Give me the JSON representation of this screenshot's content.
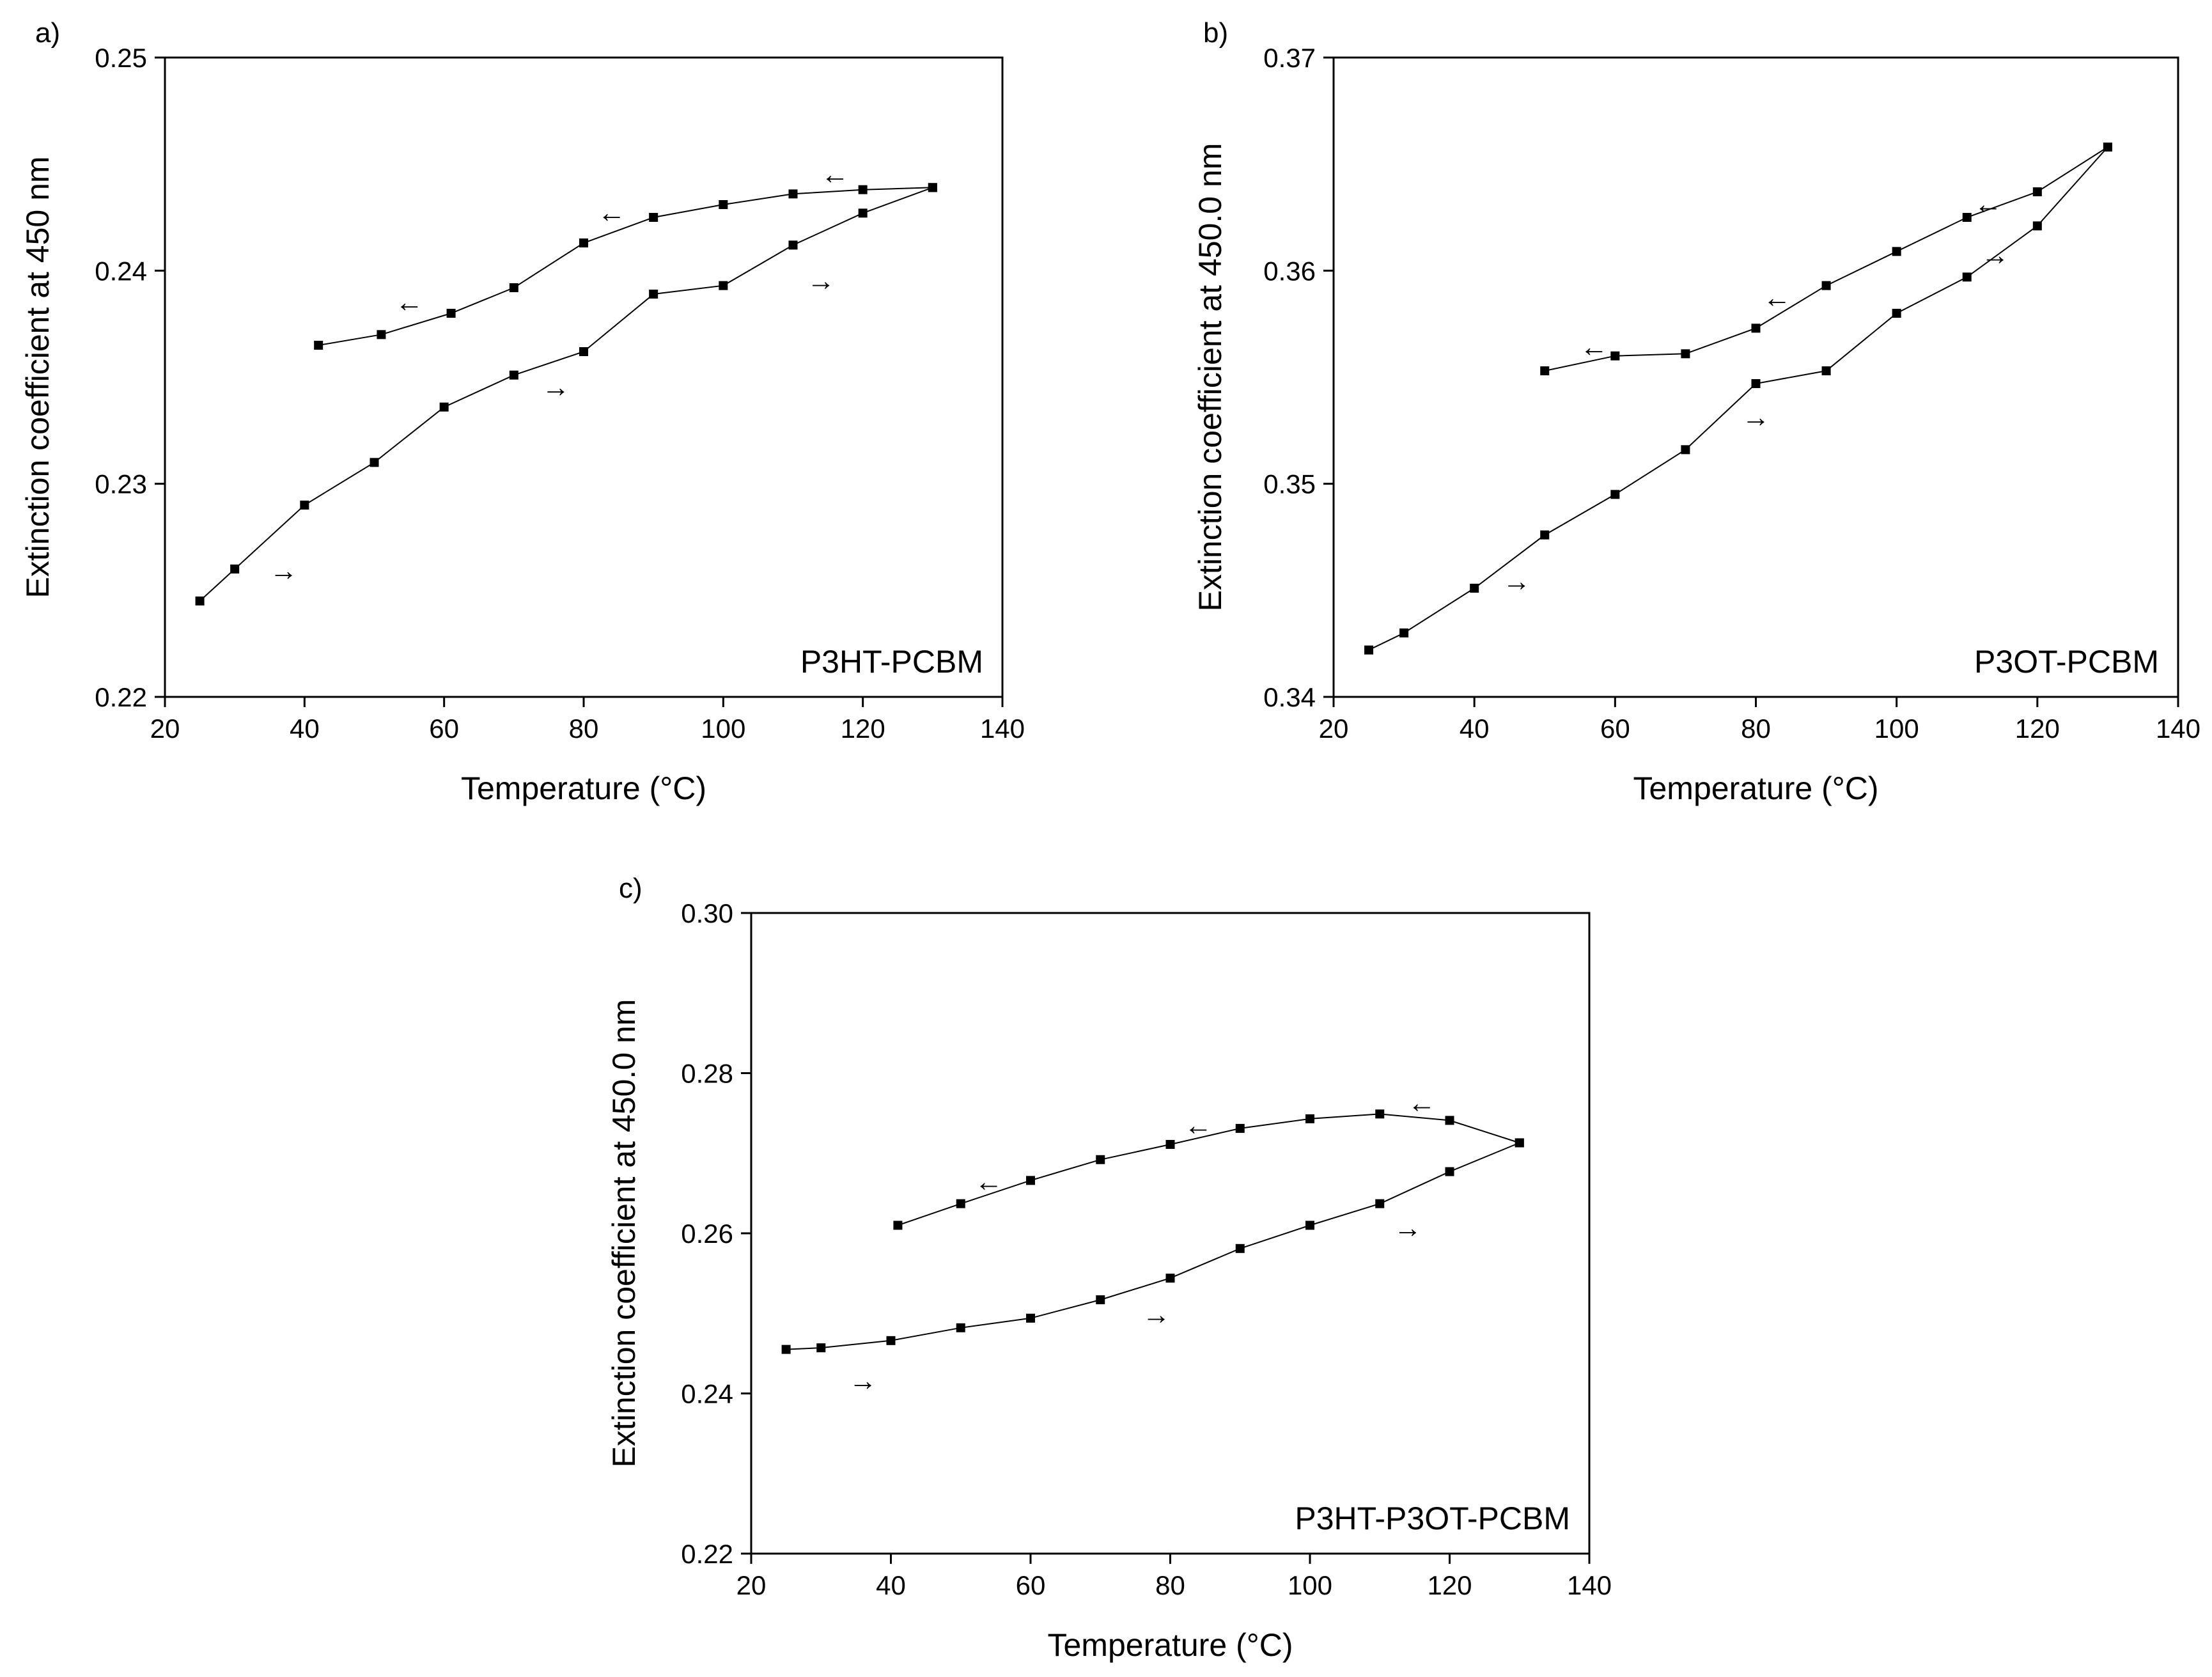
{
  "chart_data": [
    {
      "type": "line",
      "panel_label": "a)",
      "annotation": "P3HT-PCBM",
      "xlabel": "Temperature (°C)",
      "ylabel": "Extinction coefficient at 450 nm",
      "xlim": [
        20,
        140
      ],
      "ylim": [
        0.22,
        0.25
      ],
      "xticks": [
        20,
        40,
        60,
        80,
        100,
        120,
        140
      ],
      "xtick_labels": [
        "20",
        "40",
        "60",
        "80",
        "100",
        "120",
        "140"
      ],
      "yticks": [
        0.22,
        0.23,
        0.24,
        0.25
      ],
      "ytick_labels": [
        "0.22",
        "0.23",
        "0.24",
        "0.25"
      ],
      "grid": false,
      "series": [
        {
          "name": "heating",
          "direction": "→",
          "x": [
            25,
            30,
            40,
            50,
            60,
            70,
            80,
            90,
            100,
            110,
            120,
            130
          ],
          "y": [
            0.2245,
            0.226,
            0.229,
            0.231,
            0.2336,
            0.2351,
            0.2362,
            0.2389,
            0.2393,
            0.2412,
            0.2427,
            0.2439
          ]
        },
        {
          "name": "cooling",
          "direction": "←",
          "x": [
            130,
            120,
            110,
            100,
            90,
            80,
            70,
            61,
            51,
            42
          ],
          "y": [
            0.2439,
            0.2438,
            0.2436,
            0.2431,
            0.2425,
            0.2413,
            0.2392,
            0.238,
            0.237,
            0.2365
          ]
        }
      ],
      "arrows": [
        {
          "glyph": "←",
          "x": 116,
          "y": 0.2445
        },
        {
          "glyph": "←",
          "x": 84,
          "y": 0.2427
        },
        {
          "glyph": "←",
          "x": 55,
          "y": 0.2385
        },
        {
          "glyph": "→",
          "x": 114,
          "y": 0.2395
        },
        {
          "glyph": "→",
          "x": 76,
          "y": 0.2345
        },
        {
          "glyph": "→",
          "x": 37,
          "y": 0.2259
        }
      ]
    },
    {
      "type": "line",
      "panel_label": "b)",
      "annotation": "P3OT-PCBM",
      "xlabel": "Temperature (°C)",
      "ylabel": "Extinction coefficient at 450.0 nm",
      "xlim": [
        20,
        140
      ],
      "ylim": [
        0.34,
        0.37
      ],
      "xticks": [
        20,
        40,
        60,
        80,
        100,
        120,
        140
      ],
      "xtick_labels": [
        "20",
        "40",
        "60",
        "80",
        "100",
        "120",
        "140"
      ],
      "yticks": [
        0.34,
        0.35,
        0.36,
        0.37
      ],
      "ytick_labels": [
        "0.34",
        "0.35",
        "0.36",
        "0.37"
      ],
      "grid": false,
      "series": [
        {
          "name": "heating",
          "direction": "→",
          "x": [
            25,
            30,
            40,
            50,
            60,
            70,
            80,
            90,
            100,
            110,
            120,
            130
          ],
          "y": [
            0.3422,
            0.343,
            0.3451,
            0.3476,
            0.3495,
            0.3516,
            0.3547,
            0.3553,
            0.358,
            0.3597,
            0.3621,
            0.3658
          ]
        },
        {
          "name": "cooling",
          "direction": "←",
          "x": [
            130,
            120,
            110,
            100,
            90,
            80,
            70,
            60,
            50
          ],
          "y": [
            0.3658,
            0.3637,
            0.3625,
            0.3609,
            0.3593,
            0.3573,
            0.3561,
            0.356,
            0.3553
          ]
        }
      ],
      "arrows": [
        {
          "glyph": "←",
          "x": 113,
          "y": 0.3631
        },
        {
          "glyph": "←",
          "x": 83,
          "y": 0.3587
        },
        {
          "glyph": "←",
          "x": 57,
          "y": 0.3564
        },
        {
          "glyph": "→",
          "x": 114,
          "y": 0.3607
        },
        {
          "glyph": "→",
          "x": 80,
          "y": 0.3531
        },
        {
          "glyph": "→",
          "x": 46,
          "y": 0.3454
        }
      ]
    },
    {
      "type": "line",
      "panel_label": "c)",
      "annotation": "P3HT-P3OT-PCBM",
      "xlabel": "Temperature (°C)",
      "ylabel": "Extinction coefficient at 450.0 nm",
      "xlim": [
        20,
        140
      ],
      "ylim": [
        0.22,
        0.3
      ],
      "xticks": [
        20,
        40,
        60,
        80,
        100,
        120,
        140
      ],
      "xtick_labels": [
        "20",
        "40",
        "60",
        "80",
        "100",
        "120",
        "140"
      ],
      "yticks": [
        0.22,
        0.24,
        0.26,
        0.28,
        0.3
      ],
      "ytick_labels": [
        "0.22",
        "0.24",
        "0.26",
        "0.28",
        "0.30"
      ],
      "grid": false,
      "series": [
        {
          "name": "heating",
          "direction": "→",
          "x": [
            25,
            30,
            40,
            50,
            60,
            70,
            80,
            90,
            100,
            110,
            120,
            130
          ],
          "y": [
            0.2455,
            0.2457,
            0.2466,
            0.2482,
            0.2494,
            0.2517,
            0.2544,
            0.2581,
            0.261,
            0.2637,
            0.2677,
            0.2713
          ]
        },
        {
          "name": "cooling",
          "direction": "←",
          "x": [
            130,
            120,
            110,
            100,
            90,
            80,
            70,
            60,
            50,
            41
          ],
          "y": [
            0.2713,
            0.2741,
            0.2749,
            0.2743,
            0.2731,
            0.2711,
            0.2692,
            0.2666,
            0.2637,
            0.261
          ]
        }
      ],
      "arrows": [
        {
          "glyph": "←",
          "x": 116,
          "y": 0.2762
        },
        {
          "glyph": "←",
          "x": 84,
          "y": 0.2734
        },
        {
          "glyph": "←",
          "x": 54,
          "y": 0.2664
        },
        {
          "glyph": "→",
          "x": 114,
          "y": 0.2606
        },
        {
          "glyph": "→",
          "x": 78,
          "y": 0.2498
        },
        {
          "glyph": "→",
          "x": 36,
          "y": 0.2415
        }
      ]
    }
  ]
}
